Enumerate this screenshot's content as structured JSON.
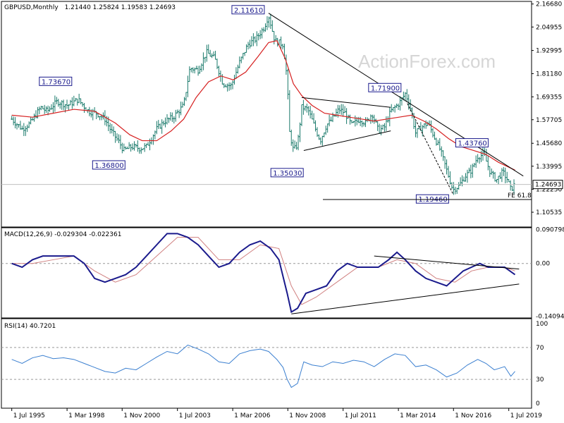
{
  "main_pane": {
    "title": "GBPUSD,Monthly",
    "ohlc": "1.21440 1.25824 1.19583 1.24693",
    "watermark": "ActionForex.com",
    "last_price": "1.24693",
    "fe_label": "FE 61.8",
    "y_ticks": [
      "2.16680",
      "2.04955",
      "1.92995",
      "1.81180",
      "1.69355",
      "1.57705",
      "1.45680",
      "1.33995",
      "1.22250",
      "1.10535"
    ],
    "annotations": [
      "2.11610",
      "1.73670",
      "1.36800",
      "1.35030",
      "1.71900",
      "1.43760",
      "1.19460"
    ]
  },
  "macd_pane": {
    "title": "MACD(12,26,9) -0.029304 -0.022361",
    "y_ticks": [
      "0.090798",
      "0.00",
      "-0.14094"
    ]
  },
  "rsi_pane": {
    "title": "RSI(14) 40.7201",
    "y_ticks": [
      "100",
      "70",
      "30",
      "0"
    ]
  },
  "x_ticks": [
    "1 Jul 1995",
    "1 Mar 1998",
    "1 Nov 2000",
    "1 Jul 2003",
    "1 Mar 2006",
    "1 Nov 2008",
    "1 Jul 2011",
    "1 Mar 2014",
    "1 Nov 2016",
    "1 Jul 2019"
  ],
  "colors": {
    "price_bars": "#1a7a6b",
    "moving_average": "#d62020",
    "macd_line": "#1a1a8c",
    "signal_line": "#d08080",
    "rsi_line": "#3a7fd0",
    "trendlines": "#000000",
    "grid_dash": "#999999"
  },
  "chart_data": [
    {
      "type": "ohlc",
      "title": "GBPUSD,Monthly",
      "categories": [
        "1 Jul 1995",
        "1 Mar 1998",
        "1 Nov 2000",
        "1 Jul 2003",
        "1 Mar 2006",
        "1 Nov 2008",
        "1 Jul 2011",
        "1 Mar 2014",
        "1 Nov 2016",
        "1 Jul 2019"
      ],
      "price_path": [
        [
          1995.5,
          1.58
        ],
        [
          1996.0,
          1.53
        ],
        [
          1996.4,
          1.56
        ],
        [
          1996.9,
          1.64
        ],
        [
          1997.2,
          1.62
        ],
        [
          1997.7,
          1.67
        ],
        [
          1998.2,
          1.65
        ],
        [
          1998.7,
          1.68
        ],
        [
          1999.2,
          1.62
        ],
        [
          1999.6,
          1.61
        ],
        [
          2000.0,
          1.58
        ],
        [
          2000.3,
          1.52
        ],
        [
          2000.7,
          1.46
        ],
        [
          2000.9,
          1.42
        ],
        [
          2001.3,
          1.44
        ],
        [
          2001.7,
          1.43
        ],
        [
          2002.0,
          1.44
        ],
        [
          2002.5,
          1.53
        ],
        [
          2002.9,
          1.57
        ],
        [
          2003.3,
          1.59
        ],
        [
          2003.8,
          1.65
        ],
        [
          2004.1,
          1.84
        ],
        [
          2004.5,
          1.83
        ],
        [
          2004.9,
          1.92
        ],
        [
          2005.3,
          1.89
        ],
        [
          2005.7,
          1.76
        ],
        [
          2006.1,
          1.75
        ],
        [
          2006.5,
          1.87
        ],
        [
          2006.9,
          1.96
        ],
        [
          2007.3,
          1.99
        ],
        [
          2007.7,
          2.05
        ],
        [
          2007.9,
          2.11
        ],
        [
          2008.2,
          1.98
        ],
        [
          2008.6,
          1.96
        ],
        [
          2008.8,
          1.78
        ],
        [
          2008.9,
          1.52
        ],
        [
          2009.1,
          1.42
        ],
        [
          2009.3,
          1.45
        ],
        [
          2009.5,
          1.64
        ],
        [
          2009.8,
          1.63
        ],
        [
          2010.2,
          1.52
        ],
        [
          2010.4,
          1.47
        ],
        [
          2010.7,
          1.55
        ],
        [
          2010.9,
          1.57
        ],
        [
          2011.3,
          1.63
        ],
        [
          2011.6,
          1.61
        ],
        [
          2011.9,
          1.55
        ],
        [
          2012.3,
          1.58
        ],
        [
          2012.6,
          1.56
        ],
        [
          2012.9,
          1.61
        ],
        [
          2013.2,
          1.52
        ],
        [
          2013.5,
          1.54
        ],
        [
          2013.8,
          1.62
        ],
        [
          2014.2,
          1.66
        ],
        [
          2014.5,
          1.71
        ],
        [
          2014.7,
          1.66
        ],
        [
          2015.0,
          1.51
        ],
        [
          2015.3,
          1.54
        ],
        [
          2015.6,
          1.56
        ],
        [
          2015.9,
          1.49
        ],
        [
          2016.2,
          1.42
        ],
        [
          2016.5,
          1.32
        ],
        [
          2016.8,
          1.22
        ],
        [
          2017.1,
          1.24
        ],
        [
          2017.4,
          1.29
        ],
        [
          2017.7,
          1.32
        ],
        [
          2018.0,
          1.39
        ],
        [
          2018.3,
          1.4
        ],
        [
          2018.6,
          1.31
        ],
        [
          2018.9,
          1.27
        ],
        [
          2019.2,
          1.31
        ],
        [
          2019.4,
          1.28
        ],
        [
          2019.6,
          1.22
        ],
        [
          2019.8,
          1.25
        ]
      ],
      "moving_average": [
        [
          1995.5,
          1.6
        ],
        [
          1996.5,
          1.59
        ],
        [
          1997.5,
          1.61
        ],
        [
          1998.5,
          1.63
        ],
        [
          1999.5,
          1.62
        ],
        [
          2000.5,
          1.56
        ],
        [
          2001.2,
          1.5
        ],
        [
          2001.8,
          1.47
        ],
        [
          2002.5,
          1.47
        ],
        [
          2003.2,
          1.52
        ],
        [
          2003.8,
          1.58
        ],
        [
          2004.4,
          1.69
        ],
        [
          2005.0,
          1.77
        ],
        [
          2005.6,
          1.8
        ],
        [
          2006.2,
          1.78
        ],
        [
          2006.8,
          1.82
        ],
        [
          2007.4,
          1.9
        ],
        [
          2007.9,
          1.97
        ],
        [
          2008.3,
          1.98
        ],
        [
          2008.7,
          1.89
        ],
        [
          2009.1,
          1.76
        ],
        [
          2009.5,
          1.7
        ],
        [
          2010.0,
          1.65
        ],
        [
          2010.6,
          1.61
        ],
        [
          2011.2,
          1.6
        ],
        [
          2011.8,
          1.59
        ],
        [
          2012.4,
          1.58
        ],
        [
          2013.0,
          1.57
        ],
        [
          2013.6,
          1.58
        ],
        [
          2014.2,
          1.59
        ],
        [
          2014.8,
          1.6
        ],
        [
          2015.4,
          1.57
        ],
        [
          2016.0,
          1.53
        ],
        [
          2016.6,
          1.48
        ],
        [
          2017.2,
          1.44
        ],
        [
          2017.8,
          1.42
        ],
        [
          2018.4,
          1.4
        ],
        [
          2019.0,
          1.36
        ],
        [
          2019.8,
          1.32
        ]
      ],
      "annotations": [
        {
          "label": "2.11610",
          "x": 2007.9,
          "y": 2.1161
        },
        {
          "label": "1.73670",
          "x": 1996.9,
          "y": 1.7367
        },
        {
          "label": "1.36800",
          "x": 2000.9,
          "y": 1.368
        },
        {
          "label": "1.35030",
          "x": 2009.1,
          "y": 1.3503
        },
        {
          "label": "1.71900",
          "x": 2014.5,
          "y": 1.719
        },
        {
          "label": "1.43760",
          "x": 2018.3,
          "y": 1.4376
        },
        {
          "label": "1.19460",
          "x": 2016.8,
          "y": 1.1946
        }
      ],
      "trendlines": [
        {
          "from": [
            2007.9,
            2.12
          ],
          "to": [
            2020.2,
            1.29
          ]
        },
        {
          "from": [
            2009.5,
            1.69
          ],
          "to": [
            2013.8,
            1.64
          ]
        },
        {
          "from": [
            2009.6,
            1.42
          ],
          "to": [
            2013.8,
            1.52
          ]
        },
        {
          "from": [
            2014.6,
            1.66
          ],
          "to": [
            2016.8,
            1.2
          ],
          "style": "dashed"
        }
      ],
      "last_price": 1.24693,
      "fe_level": 1.17,
      "ylim": [
        1.03,
        2.18
      ]
    },
    {
      "type": "line",
      "title": "MACD(12,26,9) -0.029304 -0.022361",
      "series": [
        {
          "name": "MACD",
          "values": [
            [
              1995.5,
              0.0
            ],
            [
              1996.0,
              -0.01
            ],
            [
              1996.5,
              0.01
            ],
            [
              1997.0,
              0.02
            ],
            [
              1997.5,
              0.02
            ],
            [
              1998.0,
              0.02
            ],
            [
              1998.5,
              0.02
            ],
            [
              1999.0,
              0.0
            ],
            [
              1999.5,
              -0.04
            ],
            [
              2000.0,
              -0.05
            ],
            [
              2000.5,
              -0.04
            ],
            [
              2001.0,
              -0.03
            ],
            [
              2001.5,
              -0.01
            ],
            [
              2002.0,
              0.02
            ],
            [
              2002.5,
              0.05
            ],
            [
              2003.0,
              0.08
            ],
            [
              2003.5,
              0.08
            ],
            [
              2004.0,
              0.07
            ],
            [
              2004.5,
              0.05
            ],
            [
              2005.0,
              0.02
            ],
            [
              2005.5,
              -0.01
            ],
            [
              2006.0,
              0.0
            ],
            [
              2006.5,
              0.03
            ],
            [
              2007.0,
              0.05
            ],
            [
              2007.5,
              0.06
            ],
            [
              2008.0,
              0.04
            ],
            [
              2008.4,
              0.01
            ],
            [
              2008.8,
              -0.08
            ],
            [
              2009.0,
              -0.13
            ],
            [
              2009.3,
              -0.12
            ],
            [
              2009.7,
              -0.08
            ],
            [
              2010.2,
              -0.07
            ],
            [
              2010.7,
              -0.06
            ],
            [
              2011.2,
              -0.02
            ],
            [
              2011.7,
              0.0
            ],
            [
              2012.2,
              -0.01
            ],
            [
              2012.7,
              -0.01
            ],
            [
              2013.2,
              -0.01
            ],
            [
              2013.7,
              0.01
            ],
            [
              2014.1,
              0.03
            ],
            [
              2014.5,
              0.01
            ],
            [
              2015.0,
              -0.02
            ],
            [
              2015.5,
              -0.04
            ],
            [
              2016.0,
              -0.05
            ],
            [
              2016.5,
              -0.06
            ],
            [
              2016.9,
              -0.04
            ],
            [
              2017.3,
              -0.02
            ],
            [
              2017.7,
              -0.01
            ],
            [
              2018.1,
              0.0
            ],
            [
              2018.5,
              -0.01
            ],
            [
              2018.9,
              -0.01
            ],
            [
              2019.3,
              -0.01
            ],
            [
              2019.8,
              -0.03
            ]
          ]
        },
        {
          "name": "Signal",
          "values": [
            [
              1995.5,
              0.0
            ],
            [
              1996.5,
              0.0
            ],
            [
              1997.5,
              0.01
            ],
            [
              1998.5,
              0.02
            ],
            [
              1999.5,
              -0.02
            ],
            [
              2000.5,
              -0.05
            ],
            [
              2001.5,
              -0.03
            ],
            [
              2002.5,
              0.02
            ],
            [
              2003.5,
              0.07
            ],
            [
              2004.5,
              0.07
            ],
            [
              2005.5,
              0.01
            ],
            [
              2006.5,
              0.01
            ],
            [
              2007.5,
              0.05
            ],
            [
              2008.4,
              0.04
            ],
            [
              2009.0,
              -0.06
            ],
            [
              2009.5,
              -0.11
            ],
            [
              2010.2,
              -0.09
            ],
            [
              2011.2,
              -0.05
            ],
            [
              2012.2,
              -0.01
            ],
            [
              2013.2,
              -0.01
            ],
            [
              2014.1,
              0.01
            ],
            [
              2015.0,
              0.0
            ],
            [
              2016.0,
              -0.04
            ],
            [
              2016.9,
              -0.05
            ],
            [
              2017.7,
              -0.02
            ],
            [
              2018.5,
              -0.01
            ],
            [
              2019.3,
              -0.01
            ],
            [
              2019.8,
              -0.02
            ]
          ]
        }
      ],
      "trendlines": [
        {
          "from": [
            2013.0,
            0.02
          ],
          "to": [
            2020.0,
            -0.015
          ]
        },
        {
          "from": [
            2009.0,
            -0.135
          ],
          "to": [
            2020.0,
            -0.055
          ]
        }
      ],
      "ylim": [
        -0.14094,
        0.090798
      ]
    },
    {
      "type": "line",
      "title": "RSI(14) 40.7201",
      "series": [
        {
          "name": "RSI",
          "values": [
            [
              1995.5,
              55
            ],
            [
              1996.0,
              50
            ],
            [
              1996.5,
              57
            ],
            [
              1997.0,
              60
            ],
            [
              1997.5,
              56
            ],
            [
              1998.0,
              57
            ],
            [
              1998.5,
              55
            ],
            [
              1999.0,
              50
            ],
            [
              1999.5,
              45
            ],
            [
              2000.0,
              40
            ],
            [
              2000.5,
              38
            ],
            [
              2001.0,
              44
            ],
            [
              2001.5,
              42
            ],
            [
              2002.0,
              50
            ],
            [
              2002.5,
              58
            ],
            [
              2003.0,
              65
            ],
            [
              2003.5,
              62
            ],
            [
              2004.0,
              73
            ],
            [
              2004.5,
              68
            ],
            [
              2005.0,
              62
            ],
            [
              2005.5,
              52
            ],
            [
              2006.0,
              50
            ],
            [
              2006.5,
              62
            ],
            [
              2007.0,
              66
            ],
            [
              2007.5,
              68
            ],
            [
              2007.9,
              65
            ],
            [
              2008.3,
              55
            ],
            [
              2008.6,
              45
            ],
            [
              2008.8,
              30
            ],
            [
              2009.0,
              20
            ],
            [
              2009.3,
              25
            ],
            [
              2009.6,
              52
            ],
            [
              2010.0,
              48
            ],
            [
              2010.5,
              46
            ],
            [
              2011.0,
              52
            ],
            [
              2011.5,
              50
            ],
            [
              2012.0,
              54
            ],
            [
              2012.5,
              52
            ],
            [
              2013.0,
              46
            ],
            [
              2013.5,
              55
            ],
            [
              2014.0,
              62
            ],
            [
              2014.5,
              60
            ],
            [
              2015.0,
              46
            ],
            [
              2015.5,
              48
            ],
            [
              2016.0,
              42
            ],
            [
              2016.5,
              33
            ],
            [
              2017.0,
              38
            ],
            [
              2017.5,
              48
            ],
            [
              2018.0,
              55
            ],
            [
              2018.4,
              50
            ],
            [
              2018.8,
              42
            ],
            [
              2019.3,
              46
            ],
            [
              2019.6,
              34
            ],
            [
              2019.8,
              40
            ]
          ]
        }
      ],
      "reference_levels": [
        70,
        30
      ],
      "ylim": [
        0,
        100
      ]
    }
  ]
}
